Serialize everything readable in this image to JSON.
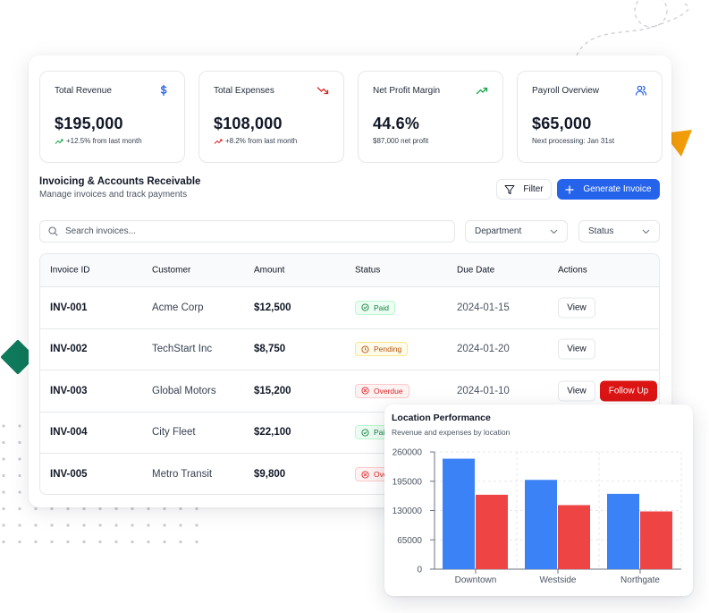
{
  "kpis": [
    {
      "title": "Total Revenue",
      "value": "$195,000",
      "sub": "+12.5% from last month",
      "icon": "dollar-icon",
      "trend": "up"
    },
    {
      "title": "Total Expenses",
      "value": "$108,000",
      "sub": "+8.2% from last month",
      "icon": "trending-down-icon",
      "trend": "up-red"
    },
    {
      "title": "Net Profit Margin",
      "value": "44.6%",
      "sub": "$87,000 net profit",
      "icon": "trending-up-icon"
    },
    {
      "title": "Payroll Overview",
      "value": "$65,000",
      "sub": "Next processing: Jan 31st",
      "icon": "users-icon"
    }
  ],
  "section": {
    "title": "Invoicing & Accounts Receivable",
    "subtitle": "Manage invoices and track payments",
    "filter_label": "Filter",
    "generate_label": "Generate Invoice"
  },
  "search": {
    "placeholder": "Search invoices..."
  },
  "filters": {
    "department": "Department",
    "status": "Status"
  },
  "table": {
    "headers": [
      "Invoice ID",
      "Customer",
      "Amount",
      "Status",
      "Due Date",
      "Actions"
    ],
    "rows": [
      {
        "id": "INV-001",
        "customer": "Acme Corp",
        "amount": "$12,500",
        "status": "Paid",
        "due": "2024-01-15",
        "action": "View"
      },
      {
        "id": "INV-002",
        "customer": "TechStart Inc",
        "amount": "$8,750",
        "status": "Pending",
        "due": "2024-01-20",
        "action": "View"
      },
      {
        "id": "INV-003",
        "customer": "Global Motors",
        "amount": "$15,200",
        "status": "Overdue",
        "due": "2024-01-10",
        "action": "View",
        "extra_action": "Follow Up"
      },
      {
        "id": "INV-004",
        "customer": "City Fleet",
        "amount": "$22,100",
        "status": "Paid",
        "due": "",
        "action": ""
      },
      {
        "id": "INV-005",
        "customer": "Metro Transit",
        "amount": "$9,800",
        "status": "Overdue",
        "due": "",
        "action": ""
      }
    ]
  },
  "colors": {
    "primary": "#2563eb",
    "danger": "#dc1414",
    "revenue": "#3b82f6",
    "expenses": "#ef4444",
    "accent_green": "#0f7a5c",
    "accent_orange": "#f59e0b"
  },
  "chart_data": {
    "type": "bar",
    "title": "Location Performance",
    "subtitle": "Revenue and expenses by location",
    "categories": [
      "Downtown",
      "Westside",
      "Northgate"
    ],
    "series": [
      {
        "values": [
          245000,
          198000,
          167000
        ]
      },
      {
        "values": [
          165000,
          142000,
          128000
        ]
      }
    ],
    "ylim": [
      0,
      260000
    ],
    "yticks": [
      0,
      65000,
      130000,
      195000,
      260000
    ],
    "grid": true
  }
}
